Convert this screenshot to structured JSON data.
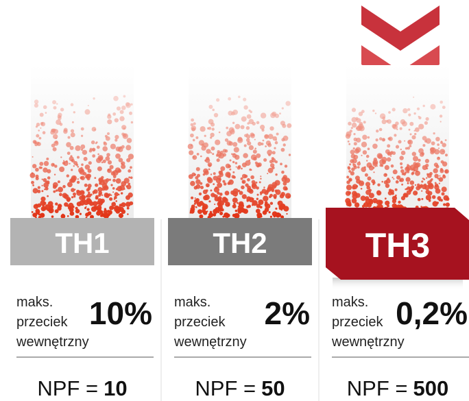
{
  "columns": [
    {
      "label": "TH1",
      "description": [
        "maks.",
        "przeciek",
        "wewnętrzny"
      ],
      "leak": "10%",
      "npf_label": "NPF =",
      "npf": "10"
    },
    {
      "label": "TH2",
      "description": [
        "maks.",
        "przeciek",
        "wewnętrzny"
      ],
      "leak": "2%",
      "npf_label": "NPF =",
      "npf": "50"
    },
    {
      "label": "TH3",
      "description": [
        "maks.",
        "przeciek",
        "wewnętrzny"
      ],
      "leak": "0,2%",
      "npf_label": "NPF =",
      "npf": "500"
    }
  ]
}
